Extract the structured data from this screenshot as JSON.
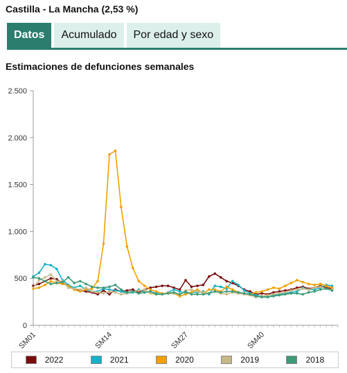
{
  "header": {
    "title": "Castilla - La Mancha (2,53 %)"
  },
  "tabs": [
    {
      "label": "Datos",
      "active": true
    },
    {
      "label": "Acumulado",
      "active": false
    },
    {
      "label": "Por edad y sexo",
      "active": false
    }
  ],
  "colors": {
    "accent": "#2b7d6e",
    "tab_bg": "#dcefeb"
  },
  "chart_data": {
    "type": "line",
    "title": "Estimaciones de defunciones semanales",
    "xlabel": "",
    "ylabel": "",
    "ylim": [
      0,
      2500
    ],
    "yticks": [
      0,
      500,
      1000,
      1500,
      2000,
      2500
    ],
    "ytick_labels": [
      "0",
      "500",
      "1.000",
      "1.500",
      "2.000",
      "2.500"
    ],
    "xtick_labels": [
      {
        "week": 1,
        "label": "SM01"
      },
      {
        "week": 14,
        "label": "SM14"
      },
      {
        "week": 27,
        "label": "SM27"
      },
      {
        "week": 40,
        "label": "SM40"
      }
    ],
    "x_range": [
      1,
      53
    ],
    "grid": false,
    "legend_position": "bottom",
    "series": [
      {
        "name": "2022",
        "color": "#7a0c0c",
        "values": [
          420,
          440,
          470,
          500,
          490,
          450,
          420,
          380,
          370,
          360,
          350,
          330,
          370,
          330,
          380,
          360,
          370,
          380,
          350,
          380,
          400,
          410,
          420,
          420,
          400,
          380,
          480,
          410,
          420,
          430,
          520,
          550,
          510,
          470,
          450,
          420,
          380,
          360,
          330,
          340,
          330,
          350,
          360,
          370,
          380,
          400,
          410,
          390,
          400,
          420,
          400,
          390
        ]
      },
      {
        "name": "2021",
        "color": "#18b0c8",
        "values": [
          520,
          560,
          650,
          640,
          600,
          480,
          430,
          400,
          420,
          380,
          360,
          360,
          390,
          380,
          370,
          360,
          340,
          350,
          380,
          350,
          360,
          340,
          330,
          350,
          380,
          360,
          340,
          350,
          350,
          360,
          330,
          420,
          410,
          390,
          470,
          430,
          370,
          340,
          320,
          310,
          300,
          320,
          330,
          340,
          350,
          360,
          400,
          380,
          380,
          400,
          430,
          420
        ]
      },
      {
        "name": "2020",
        "color": "#f0a000",
        "values": [
          390,
          400,
          430,
          470,
          450,
          440,
          420,
          380,
          360,
          380,
          390,
          470,
          870,
          1820,
          1860,
          1260,
          840,
          610,
          470,
          420,
          380,
          360,
          340,
          340,
          340,
          310,
          330,
          350,
          380,
          340,
          380,
          380,
          360,
          410,
          380,
          350,
          340,
          330,
          350,
          360,
          380,
          400,
          390,
          420,
          450,
          480,
          460,
          440,
          430,
          440,
          420,
          400
        ]
      },
      {
        "name": "2019",
        "color": "#c8b886",
        "values": [
          400,
          480,
          510,
          540,
          470,
          470,
          400,
          390,
          380,
          400,
          360,
          350,
          340,
          360,
          350,
          330,
          340,
          360,
          370,
          380,
          340,
          330,
          330,
          350,
          340,
          330,
          370,
          380,
          360,
          350,
          340,
          360,
          340,
          330,
          350,
          340,
          330,
          320,
          300,
          310,
          320,
          330,
          340,
          350,
          370,
          380,
          390,
          380,
          400,
          410,
          390,
          380
        ]
      },
      {
        "name": "2018",
        "color": "#3e9a78",
        "values": [
          510,
          500,
          470,
          440,
          450,
          460,
          510,
          450,
          470,
          440,
          410,
          400,
          400,
          410,
          430,
          380,
          350,
          360,
          340,
          350,
          360,
          330,
          330,
          340,
          350,
          330,
          360,
          330,
          330,
          330,
          340,
          360,
          350,
          360,
          360,
          350,
          340,
          330,
          310,
          300,
          300,
          310,
          320,
          330,
          340,
          340,
          330,
          350,
          360,
          380,
          390,
          370
        ]
      }
    ]
  }
}
